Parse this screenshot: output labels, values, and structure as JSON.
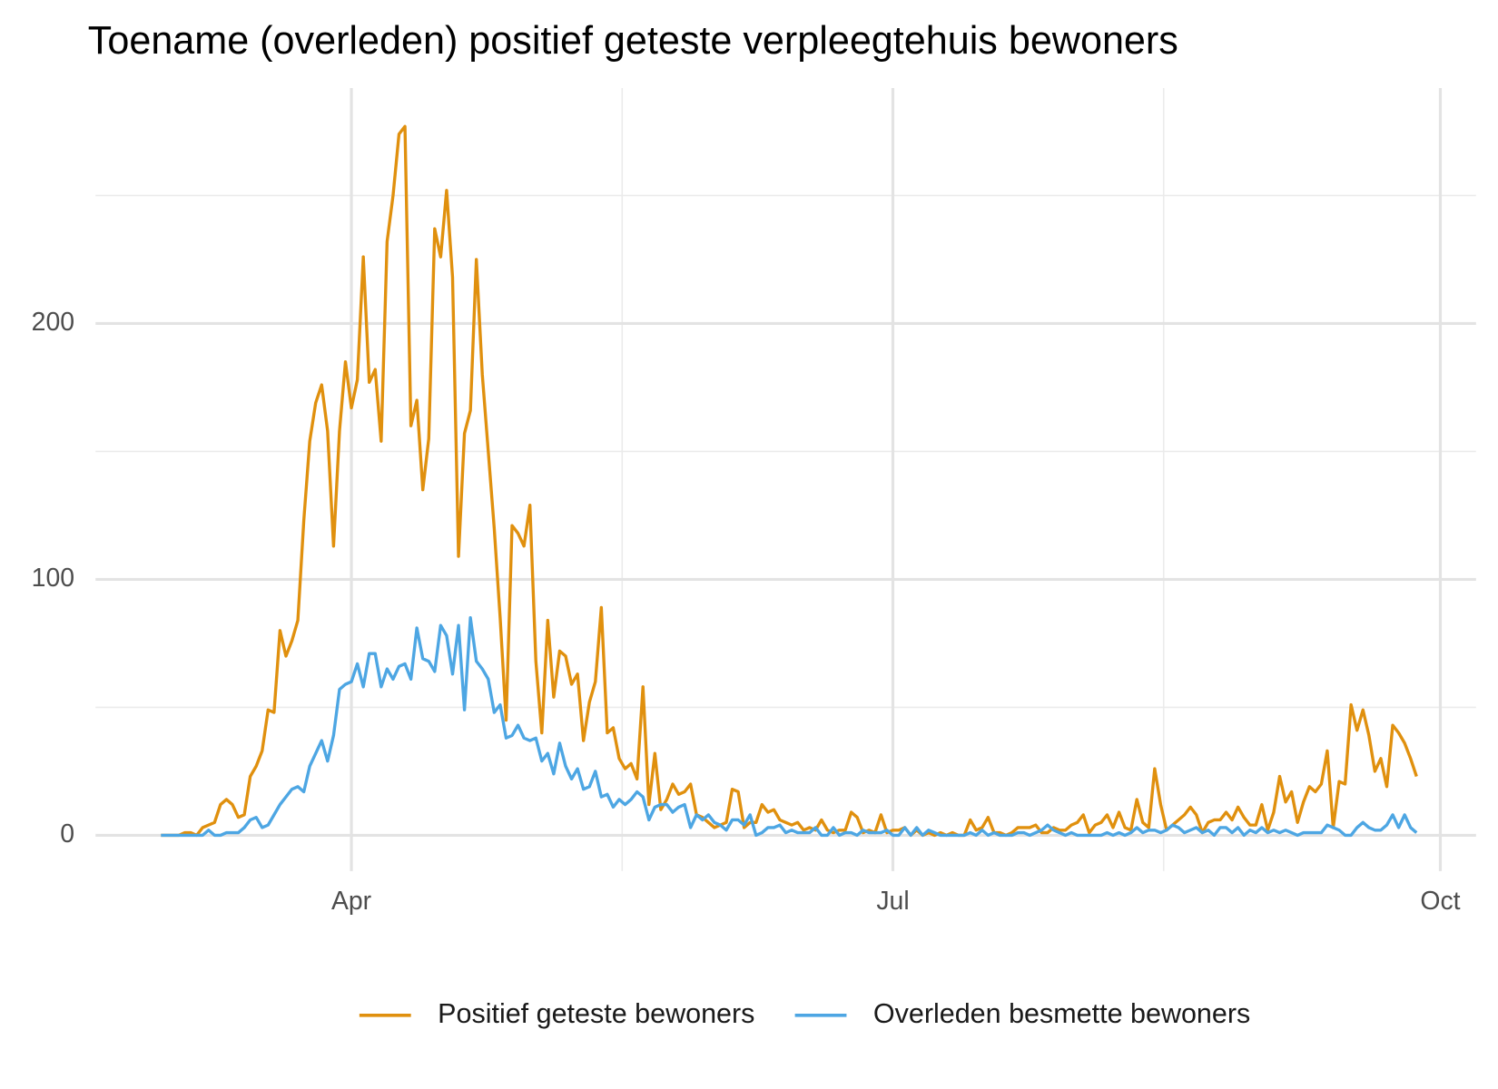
{
  "chart_data": {
    "type": "line",
    "title": "Toename (overleden) positief geteste verpleegtehuis bewoners",
    "x": [
      60,
      61,
      62,
      63,
      64,
      65,
      66,
      67,
      68,
      69,
      70,
      71,
      72,
      73,
      74,
      75,
      76,
      77,
      78,
      79,
      80,
      81,
      82,
      83,
      84,
      85,
      86,
      87,
      88,
      89,
      90,
      91,
      92,
      93,
      94,
      95,
      96,
      97,
      98,
      99,
      100,
      101,
      102,
      103,
      104,
      105,
      106,
      107,
      108,
      109,
      110,
      111,
      112,
      113,
      114,
      115,
      116,
      117,
      118,
      119,
      120,
      121,
      122,
      123,
      124,
      125,
      126,
      127,
      128,
      129,
      130,
      131,
      132,
      133,
      134,
      135,
      136,
      137,
      138,
      139,
      140,
      141,
      142,
      143,
      144,
      145,
      146,
      147,
      148,
      149,
      150,
      151,
      152,
      153,
      154,
      155,
      156,
      157,
      158,
      159,
      160,
      161,
      162,
      163,
      164,
      165,
      166,
      167,
      168,
      169,
      170,
      171,
      172,
      173,
      174,
      175,
      176,
      177,
      178,
      179,
      180,
      181,
      182,
      183,
      184,
      185,
      186,
      187,
      188,
      189,
      190,
      191,
      192,
      193,
      194,
      195,
      196,
      197,
      198,
      199,
      200,
      201,
      202,
      203,
      204,
      205,
      206,
      207,
      208,
      209,
      210,
      211,
      212,
      213,
      214,
      215,
      216,
      217,
      218,
      219,
      220,
      221,
      222,
      223,
      224,
      225,
      226,
      227,
      228,
      229,
      230,
      231,
      232,
      233,
      234,
      235,
      236,
      237,
      238,
      239,
      240,
      241,
      242,
      243,
      244,
      245,
      246,
      247,
      248,
      249,
      250,
      251,
      252,
      253,
      254,
      255,
      256,
      257,
      258,
      259,
      260,
      261,
      262,
      263,
      264,
      265,
      266,
      267,
      268,
      269,
      270,
      271
    ],
    "series": [
      {
        "name": "Positief geteste bewoners",
        "color": "#e0900e",
        "values": [
          0,
          0,
          0,
          0,
          1,
          1,
          0,
          3,
          4,
          5,
          12,
          14,
          12,
          7,
          8,
          23,
          27,
          33,
          49,
          48,
          80,
          70,
          76,
          84,
          123,
          154,
          169,
          176,
          158,
          113,
          158,
          185,
          167,
          178,
          226,
          177,
          182,
          154,
          232,
          250,
          274,
          277,
          160,
          170,
          135,
          155,
          237,
          226,
          252,
          218,
          109,
          157,
          166,
          225,
          180,
          150,
          120,
          85,
          45,
          121,
          118,
          113,
          129,
          68,
          40,
          84,
          54,
          72,
          70,
          59,
          63,
          37,
          52,
          60,
          89,
          40,
          42,
          30,
          26,
          28,
          22,
          58,
          12,
          32,
          10,
          14,
          20,
          16,
          17,
          20,
          8,
          7,
          5,
          3,
          4,
          5,
          18,
          17,
          3,
          5,
          5,
          12,
          9,
          10,
          6,
          5,
          4,
          5,
          2,
          3,
          2,
          6,
          2,
          1,
          2,
          2,
          9,
          7,
          1,
          2,
          1,
          8,
          1,
          2,
          2,
          3,
          0,
          2,
          0,
          1,
          0,
          1,
          0,
          1,
          0,
          0,
          6,
          2,
          3,
          7,
          1,
          1,
          0,
          1,
          3,
          3,
          3,
          4,
          1,
          1,
          3,
          2,
          2,
          4,
          5,
          8,
          1,
          4,
          5,
          8,
          3,
          9,
          3,
          2,
          14,
          5,
          3,
          26,
          12,
          2,
          4,
          6,
          8,
          11,
          8,
          1,
          5,
          6,
          6,
          9,
          6,
          11,
          7,
          4,
          4,
          12,
          2,
          9,
          23,
          13,
          17,
          5,
          13,
          19,
          17,
          20,
          33,
          3,
          21,
          20,
          51,
          41,
          49,
          39,
          25,
          30,
          19,
          43,
          40,
          36,
          30,
          23
        ]
      },
      {
        "name": "Overleden besmette bewoners",
        "color": "#4da6e3",
        "values": [
          0,
          0,
          0,
          0,
          0,
          0,
          0,
          0,
          2,
          0,
          0,
          1,
          1,
          1,
          3,
          6,
          7,
          3,
          4,
          8,
          12,
          15,
          18,
          19,
          17,
          27,
          32,
          37,
          29,
          39,
          57,
          59,
          60,
          67,
          58,
          71,
          71,
          58,
          65,
          61,
          66,
          67,
          61,
          81,
          69,
          68,
          64,
          82,
          78,
          63,
          82,
          49,
          85,
          68,
          65,
          61,
          48,
          51,
          38,
          39,
          43,
          38,
          37,
          38,
          29,
          32,
          24,
          36,
          27,
          22,
          26,
          18,
          19,
          25,
          15,
          16,
          11,
          14,
          12,
          14,
          17,
          15,
          6,
          11,
          12,
          12,
          9,
          11,
          12,
          3,
          8,
          6,
          8,
          5,
          4,
          2,
          6,
          6,
          4,
          8,
          0,
          1,
          3,
          3,
          4,
          1,
          2,
          1,
          1,
          1,
          3,
          0,
          0,
          3,
          0,
          1,
          1,
          0,
          2,
          1,
          1,
          1,
          2,
          0,
          0,
          3,
          0,
          3,
          0,
          2,
          1,
          0,
          0,
          0,
          0,
          0,
          1,
          0,
          2,
          0,
          1,
          0,
          0,
          0,
          1,
          1,
          0,
          1,
          2,
          4,
          2,
          1,
          0,
          1,
          0,
          0,
          0,
          0,
          0,
          1,
          0,
          1,
          0,
          1,
          3,
          1,
          2,
          2,
          1,
          2,
          4,
          3,
          1,
          2,
          3,
          1,
          2,
          0,
          3,
          3,
          1,
          3,
          0,
          2,
          1,
          3,
          1,
          2,
          1,
          2,
          1,
          0,
          1,
          1,
          1,
          1,
          4,
          3,
          2,
          0,
          0,
          3,
          5,
          3,
          2,
          2,
          4,
          8,
          3,
          8,
          3,
          1
        ]
      }
    ],
    "xlim": [
      49,
      281
    ],
    "xticks": [
      {
        "value": 92,
        "label": "Apr"
      },
      {
        "value": 183,
        "label": "Jul"
      },
      {
        "value": 275,
        "label": "Oct"
      }
    ],
    "ylim": [
      -14,
      292
    ],
    "yticks": [
      0,
      100,
      200
    ],
    "grid": true,
    "legend": "bottom"
  }
}
